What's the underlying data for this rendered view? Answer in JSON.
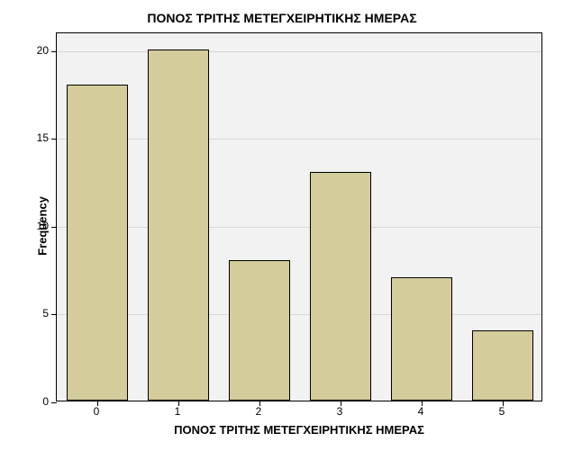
{
  "chart": {
    "type": "bar",
    "title": "ΠΟΝΟΣ ΤΡΙΤΗΣ ΜΕΤΕΓΧΕΙΡΗΤΙΚΗΣ ΗΜΕΡΑΣ",
    "title_fontsize": 14,
    "xlabel": "ΠΟΝΟΣ ΤΡΙΤΗΣ ΜΕΤΕΓΧΕΙΡΗΤΙΚΗΣ ΗΜΕΡΑΣ",
    "ylabel": "Frequency",
    "label_fontsize": 13,
    "tick_fontsize": 12,
    "categories": [
      "0",
      "1",
      "2",
      "3",
      "4",
      "5"
    ],
    "values": [
      18,
      20,
      8,
      13,
      7,
      4
    ],
    "ylim": [
      0,
      21
    ],
    "yticks": [
      0,
      5,
      10,
      15,
      20
    ],
    "bar_color": "#d4cc9a",
    "bar_border_color": "#000000",
    "background_color": "#f2f2f2",
    "grid_color": "#d6d6d6",
    "plot_border_color": "#000000",
    "bar_width_ratio": 0.75
  }
}
